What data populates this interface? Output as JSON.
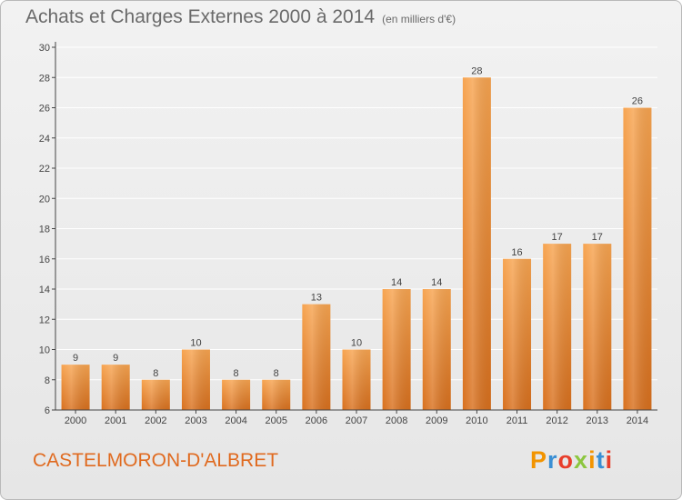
{
  "header": {
    "title": "Achats et Charges Externes 2000 à 2014",
    "subtitle": "(en milliers d'€)"
  },
  "footer": {
    "commune": "CASTELMORON-D'ALBRET",
    "logo": {
      "letters": [
        "P",
        "r",
        "o",
        "x",
        "i",
        "t",
        "i"
      ],
      "colors": [
        "#f29400",
        "#3a8fd4",
        "#e83e2b",
        "#8cc63f",
        "#f29400",
        "#3a8fd4",
        "#e83e2b"
      ]
    }
  },
  "colors": {
    "bar_light": "#f7a450",
    "bar_dark": "#d8701e",
    "grid": "#ffffff",
    "axis": "#444444",
    "title": "#6a6a6a",
    "commune": "#e06a1f"
  },
  "chart_data": {
    "type": "bar",
    "title": "Achats et Charges Externes 2000 à 2014",
    "subtitle": "(en milliers d'€)",
    "xlabel": "",
    "ylabel": "",
    "categories": [
      "2000",
      "2001",
      "2002",
      "2003",
      "2004",
      "2005",
      "2006",
      "2007",
      "2008",
      "2009",
      "2010",
      "2011",
      "2012",
      "2013",
      "2014"
    ],
    "values": [
      9,
      9,
      8,
      10,
      8,
      8,
      13,
      10,
      14,
      14,
      28,
      16,
      17,
      17,
      26
    ],
    "ylim": [
      6,
      30
    ],
    "yticks": [
      6,
      8,
      10,
      12,
      14,
      16,
      18,
      20,
      22,
      24,
      26,
      28,
      30
    ],
    "grid": true,
    "legend": "none"
  }
}
